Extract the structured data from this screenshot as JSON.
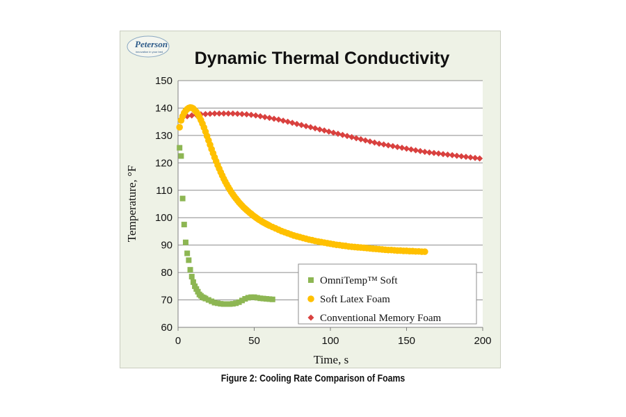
{
  "logo": {
    "name": "Peterson",
    "tagline": "innovation in your bed"
  },
  "caption": "Figure 2: Cooling Rate Comparison of Foams",
  "chart_data": {
    "type": "scatter",
    "title": "Dynamic Thermal Conductivity",
    "xlabel": "Time, s",
    "ylabel": "Temperature, °F",
    "xlim": [
      0,
      200
    ],
    "ylim": [
      60,
      150
    ],
    "xticks": [
      0,
      50,
      100,
      150,
      200
    ],
    "yticks": [
      60,
      70,
      80,
      90,
      100,
      110,
      120,
      130,
      140,
      150
    ],
    "grid": "horizontal",
    "legend_position": "bottom-right",
    "series": [
      {
        "name": "OmniTemp™ Soft",
        "marker": "square",
        "color": "#8db653",
        "x": [
          1,
          2,
          3,
          4,
          5,
          6,
          7,
          8,
          9,
          10,
          11,
          12,
          13,
          14,
          15,
          16,
          17,
          18,
          20,
          22,
          24,
          26,
          28,
          30,
          32,
          34,
          36,
          38,
          40,
          42,
          44,
          46,
          48,
          50,
          52,
          54,
          56,
          58,
          60,
          62
        ],
        "y": [
          125.5,
          122.5,
          107,
          97.5,
          91,
          87,
          84.5,
          81,
          78.5,
          76.5,
          75,
          74,
          73,
          72,
          71.5,
          71,
          70.8,
          70.5,
          70,
          69.5,
          69,
          68.8,
          68.6,
          68.5,
          68.5,
          68.5,
          68.6,
          68.8,
          69.2,
          69.8,
          70.4,
          70.8,
          71,
          71,
          70.8,
          70.6,
          70.5,
          70.4,
          70.3,
          70.2
        ]
      },
      {
        "name": "Soft Latex Foam",
        "marker": "circle",
        "color": "#ffc000",
        "x": [
          1,
          2,
          3,
          4,
          5,
          6,
          7,
          8,
          9,
          10,
          11,
          12,
          13,
          14,
          15,
          16,
          17,
          18,
          19,
          20,
          21,
          22,
          23,
          24,
          25,
          26,
          27,
          28,
          29,
          30,
          31,
          32,
          33,
          34,
          35,
          36,
          37,
          38,
          39,
          40,
          41,
          42,
          43,
          44,
          45,
          46,
          47,
          48,
          49,
          50,
          51,
          52,
          53,
          54,
          55,
          56,
          57,
          58,
          59,
          60,
          62,
          64,
          66,
          68,
          70,
          72,
          74,
          76,
          78,
          80,
          82,
          84,
          86,
          88,
          90,
          92,
          94,
          96,
          98,
          100,
          102,
          104,
          106,
          108,
          110,
          112,
          114,
          116,
          118,
          120,
          122,
          124,
          126,
          128,
          130,
          132,
          134,
          136,
          138,
          140,
          142,
          144,
          146,
          148,
          150,
          152,
          154,
          156,
          158,
          160,
          162
        ],
        "y": [
          133,
          135.5,
          137,
          138.2,
          139,
          139.6,
          140,
          140.2,
          140.1,
          139.8,
          139.2,
          138.6,
          137.8,
          136.8,
          135.6,
          134.3,
          132.9,
          131.4,
          129.8,
          128.2,
          126.6,
          125,
          123.5,
          122,
          120.6,
          119.2,
          117.9,
          116.6,
          115.4,
          114.2,
          113.1,
          112.1,
          111.1,
          110.2,
          109.3,
          108.5,
          107.7,
          107,
          106.3,
          105.6,
          105,
          104.4,
          103.8,
          103.3,
          102.8,
          102.3,
          101.8,
          101.4,
          100.9,
          100.5,
          100.1,
          99.7,
          99.3,
          99,
          98.6,
          98.3,
          98,
          97.7,
          97.4,
          97.1,
          96.6,
          96.1,
          95.6,
          95.1,
          94.7,
          94.3,
          93.9,
          93.5,
          93.2,
          92.9,
          92.6,
          92.3,
          92,
          91.8,
          91.5,
          91.3,
          91.1,
          90.9,
          90.7,
          90.5,
          90.3,
          90.1,
          90,
          89.8,
          89.7,
          89.5,
          89.4,
          89.3,
          89.2,
          89.1,
          89,
          88.9,
          88.8,
          88.7,
          88.6,
          88.5,
          88.4,
          88.3,
          88.2,
          88.2,
          88.1,
          88,
          88,
          87.9,
          87.9,
          87.8,
          87.8,
          87.7,
          87.7,
          87.6,
          87.6
        ]
      },
      {
        "name": "Conventional Memory Foam",
        "marker": "diamond",
        "color": "#d9413f",
        "x": [
          3,
          6,
          9,
          12,
          15,
          18,
          21,
          24,
          27,
          30,
          33,
          36,
          39,
          42,
          45,
          48,
          51,
          54,
          57,
          60,
          63,
          66,
          69,
          72,
          75,
          78,
          81,
          84,
          87,
          90,
          93,
          96,
          99,
          102,
          105,
          108,
          111,
          114,
          117,
          120,
          123,
          126,
          129,
          132,
          135,
          138,
          141,
          144,
          147,
          150,
          153,
          156,
          159,
          162,
          165,
          168,
          171,
          174,
          177,
          180,
          183,
          186,
          189,
          192,
          195,
          198
        ],
        "y": [
          136.5,
          137,
          137.3,
          137.5,
          137.7,
          137.8,
          137.9,
          138,
          138,
          138,
          138,
          138,
          137.9,
          137.8,
          137.7,
          137.5,
          137.3,
          137,
          136.7,
          136.4,
          136.1,
          135.8,
          135.4,
          135,
          134.6,
          134.2,
          133.8,
          133.4,
          133,
          132.6,
          132.2,
          131.8,
          131.4,
          131,
          130.6,
          130.2,
          129.8,
          129.4,
          129,
          128.6,
          128.2,
          127.8,
          127.4,
          127,
          126.7,
          126.4,
          126.1,
          125.8,
          125.5,
          125.2,
          124.9,
          124.6,
          124.3,
          124,
          123.8,
          123.6,
          123.4,
          123.2,
          123,
          122.8,
          122.6,
          122.4,
          122.2,
          122,
          121.8,
          121.6
        ]
      }
    ]
  }
}
